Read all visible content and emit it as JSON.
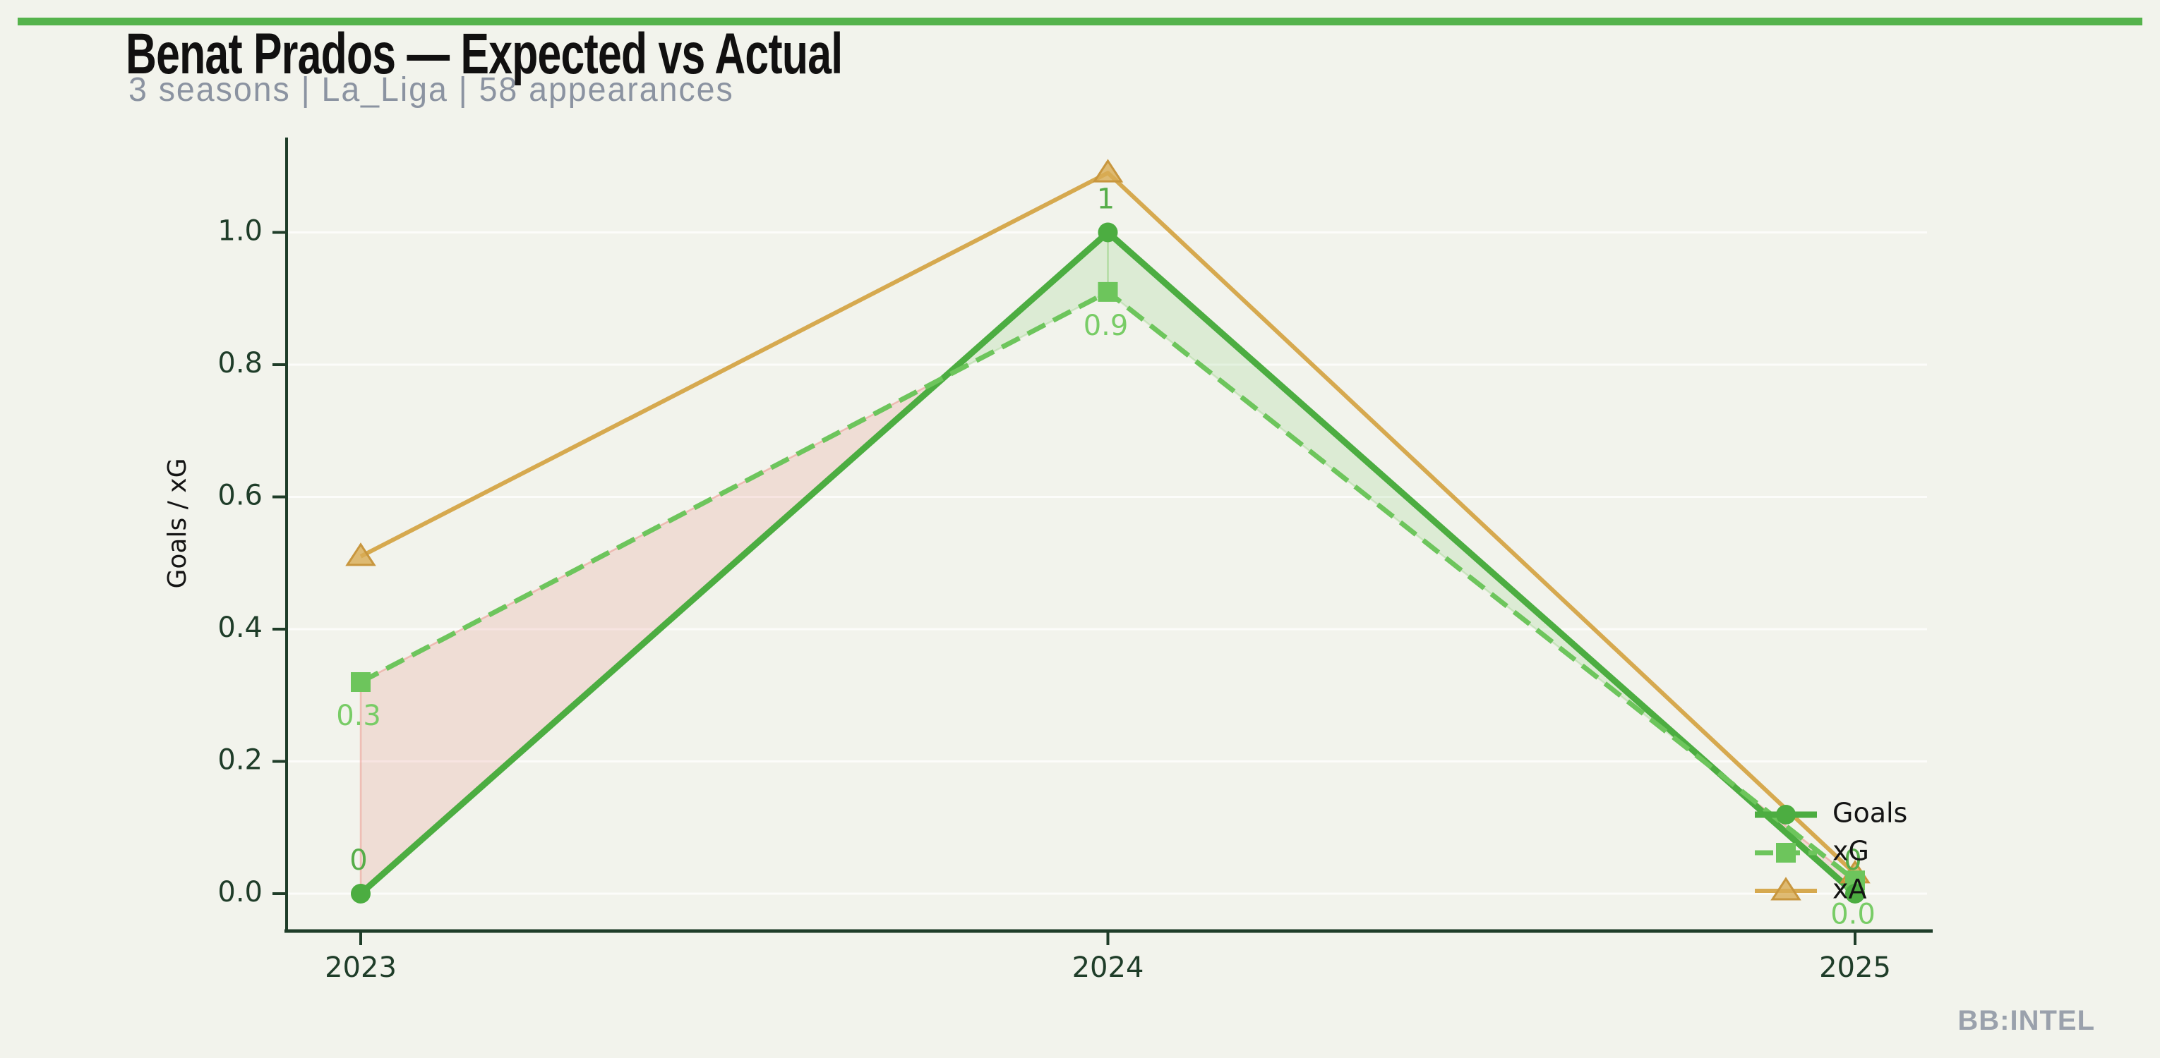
{
  "page": {
    "background_color": "#f2f3ec",
    "accent_bar_color": "#55b34c"
  },
  "header": {
    "title": "Benat Prados — Expected vs Actual",
    "subtitle": "3 seasons | La_Liga | 58 appearances"
  },
  "watermark": "BB:INTEL",
  "chart_data": {
    "type": "line",
    "title": "Benat Prados — Expected vs Actual",
    "xlabel": "",
    "ylabel": "Goals / xG",
    "categories": [
      "2023",
      "2024",
      "2025"
    ],
    "yticks": [
      0.0,
      0.2,
      0.4,
      0.6,
      0.8,
      1.0
    ],
    "ytick_labels": [
      "0.0",
      "0.2",
      "0.4",
      "0.6",
      "0.8",
      "1.0"
    ],
    "ylim": [
      -0.06,
      1.15
    ],
    "grid": "horizontal faint white lines at each y tick",
    "legend_position": "center-right inside axes, no frame",
    "axis_color": "#1f3d29",
    "tick_label_color": "#1f3d29",
    "legend_text_color": "#141414",
    "series": [
      {
        "name": "Goals",
        "line_style": "solid",
        "marker": "circle",
        "color": "#4cad41",
        "line_width": 9,
        "values": [
          0,
          1,
          0
        ],
        "point_labels": [
          "0",
          "1",
          "0"
        ],
        "label_color": "#56ad49",
        "label_side": "above"
      },
      {
        "name": "xG",
        "line_style": "dashed",
        "marker": "square",
        "color": "#6dc55c",
        "line_width": 7,
        "values": [
          0.32,
          0.91,
          0.02
        ],
        "point_labels": [
          "0.3",
          "0.9",
          "0.0"
        ],
        "label_color": "#78cc66",
        "label_side": "below"
      },
      {
        "name": "xA",
        "line_style": "solid",
        "marker": "triangle",
        "color": "#d6a94f",
        "marker_fill": "rgba(216,171,84,0.8)",
        "marker_edge": "#c8963e",
        "line_width": 6,
        "values": [
          0.51,
          1.09,
          0.03
        ],
        "point_labels": [
          "",
          "",
          ""
        ],
        "label_color": "#d6a94f",
        "label_side": "none"
      }
    ],
    "fill_between": {
      "pair": [
        "Goals",
        "xG"
      ],
      "above_fill": "rgba(112,198,94,0.17)",
      "above_edge": "rgba(150,210,130,0.35)",
      "below_fill": "rgba(226,110,98,0.17)",
      "below_edge": "rgba(235,150,140,0.55)"
    },
    "gridline_color": "rgba(255,255,255,0.75)"
  }
}
